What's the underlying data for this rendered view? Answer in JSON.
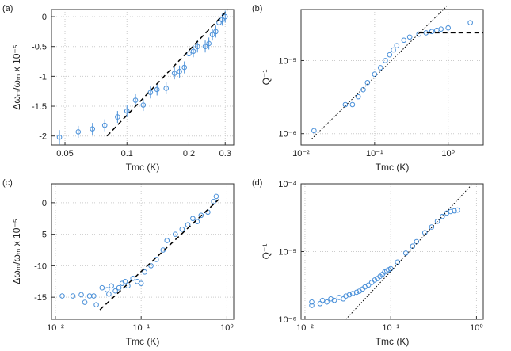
{
  "chart_data": [
    {
      "type": "scatter",
      "label": "(a)",
      "xlabel": "Tmc (K)",
      "ylabel": "Δωₘ/ωₘ x 10⁻⁵",
      "xscale": "log",
      "grid": true,
      "xlim": [
        0.043,
        0.33
      ],
      "xticks": [
        0.05,
        0.1,
        0.2,
        0.3
      ],
      "ylim": [
        -2.15,
        0.12
      ],
      "yticks": [
        -2,
        -1.5,
        -1,
        -0.5,
        0
      ],
      "series": [
        {
          "kind": "points",
          "color": "#4a90d9",
          "x": [
            0.047,
            0.058,
            0.068,
            0.078,
            0.09,
            0.1,
            0.11,
            0.12,
            0.13,
            0.14,
            0.155,
            0.17,
            0.18,
            0.19,
            0.2,
            0.21,
            0.22,
            0.24,
            0.25,
            0.26,
            0.27,
            0.28,
            0.29,
            0.3
          ],
          "values": [
            -2.02,
            -1.93,
            -1.88,
            -1.82,
            -1.68,
            -1.58,
            -1.4,
            -1.48,
            -1.27,
            -1.22,
            -1.2,
            -0.95,
            -0.92,
            -0.85,
            -0.62,
            -0.58,
            -0.5,
            -0.5,
            -0.45,
            -0.3,
            -0.25,
            -0.1,
            -0.05,
            0
          ],
          "errors": [
            0.12,
            0.1,
            0.1,
            0.1,
            0.1,
            0.1,
            0.1,
            0.1,
            0.1,
            0.1,
            0.1,
            0.1,
            0.1,
            0.1,
            0.1,
            0.1,
            0.1,
            0.1,
            0.1,
            0.1,
            0.1,
            0.1,
            0.1,
            0.1
          ]
        },
        {
          "kind": "line",
          "dash": "dashed",
          "color": "#000000",
          "x": [
            0.08,
            0.31
          ],
          "values": [
            -2.0,
            0.12
          ]
        }
      ]
    },
    {
      "type": "scatter",
      "label": "(b)",
      "xlabel": "Tmc (K)",
      "ylabel": "Q⁻¹",
      "xscale": "log",
      "yscale": "log",
      "grid": true,
      "xlim": [
        0.01,
        3
      ],
      "xticks": [
        {
          "value": 0.01,
          "label": "10⁻²"
        },
        {
          "value": 0.1,
          "label": "10⁻¹"
        },
        {
          "value": 1,
          "label": "10⁰"
        }
      ],
      "ylim": [
        7e-07,
        5e-05
      ],
      "yticks": [
        {
          "value": 1e-06,
          "label": "10⁻⁶"
        },
        {
          "value": 1e-05,
          "label": "10⁻⁵"
        }
      ],
      "series": [
        {
          "kind": "points",
          "color": "#4a90d9",
          "x": [
            0.015,
            0.04,
            0.05,
            0.06,
            0.07,
            0.08,
            0.1,
            0.12,
            0.14,
            0.16,
            0.18,
            0.2,
            0.25,
            0.3,
            0.4,
            0.5,
            0.6,
            0.7,
            0.8,
            1.0,
            2.0
          ],
          "values": [
            1.1e-06,
            2.5e-06,
            2.5e-06,
            3.2e-06,
            4e-06,
            5e-06,
            6.5e-06,
            8e-06,
            1e-05,
            1.2e-05,
            1.4e-05,
            1.6e-05,
            1.9e-05,
            2.1e-05,
            2.3e-05,
            2.4e-05,
            2.5e-05,
            2.6e-05,
            2.7e-05,
            2.8e-05,
            3.3e-05
          ]
        },
        {
          "kind": "line",
          "dash": "dotted",
          "color": "#000000",
          "x": [
            0.014,
            0.95
          ],
          "values": [
            8.5e-07,
            5.5e-05
          ]
        },
        {
          "kind": "line",
          "dash": "dashed",
          "color": "#000000",
          "x": [
            0.4,
            3
          ],
          "values": [
            2.4e-05,
            2.4e-05
          ]
        }
      ]
    },
    {
      "type": "scatter",
      "label": "(c)",
      "xlabel": "Tmc (K)",
      "ylabel": "Δωₘ/ωₘ x 10⁻⁵",
      "xscale": "log",
      "grid": true,
      "xlim": [
        0.009,
        1.2
      ],
      "xticks": [
        {
          "value": 0.01,
          "label": "10⁻²"
        },
        {
          "value": 0.1,
          "label": "10⁻¹"
        },
        {
          "value": 1,
          "label": "10⁰"
        }
      ],
      "ylim": [
        -18.5,
        3
      ],
      "yticks": [
        -15,
        -10,
        -5,
        0
      ],
      "series": [
        {
          "kind": "points",
          "color": "#4a90d9",
          "x": [
            0.012,
            0.016,
            0.02,
            0.022,
            0.025,
            0.028,
            0.03,
            0.035,
            0.04,
            0.042,
            0.045,
            0.05,
            0.055,
            0.06,
            0.065,
            0.07,
            0.08,
            0.09,
            0.1,
            0.11,
            0.13,
            0.15,
            0.18,
            0.2,
            0.25,
            0.3,
            0.35,
            0.4,
            0.45,
            0.5,
            0.6,
            0.7,
            0.75
          ],
          "values": [
            -14.8,
            -14.8,
            -14.6,
            -15.8,
            -14.8,
            -14.8,
            -16.2,
            -13.5,
            -13.8,
            -14.5,
            -13.2,
            -14,
            -13.5,
            -12.8,
            -12.5,
            -13.2,
            -12,
            -12.5,
            -12.8,
            -11,
            -10,
            -9,
            -7.5,
            -6,
            -5,
            -4.2,
            -3.5,
            -2.5,
            -3,
            -2,
            -1.5,
            0.2,
            1
          ]
        },
        {
          "kind": "line",
          "dash": "dashed",
          "color": "#000000",
          "x": [
            0.033,
            0.8
          ],
          "values": [
            -17,
            0.5
          ]
        }
      ]
    },
    {
      "type": "scatter",
      "label": "(d)",
      "xlabel": "Tmc (K)",
      "ylabel": "Q⁻¹",
      "xscale": "log",
      "yscale": "log",
      "grid": true,
      "xlim": [
        0.009,
        1.2
      ],
      "xticks": [
        {
          "value": 0.01,
          "label": "10⁻²"
        },
        {
          "value": 0.1,
          "label": "10⁻¹"
        },
        {
          "value": 1,
          "label": "10⁰"
        }
      ],
      "ylim": [
        1e-06,
        0.0001
      ],
      "yticks": [
        {
          "value": 1e-06,
          "label": "10⁻⁶"
        },
        {
          "value": 1e-05,
          "label": "10⁻⁵"
        },
        {
          "value": 0.0001,
          "label": "10⁻⁴"
        }
      ],
      "series": [
        {
          "kind": "points",
          "color": "#4a90d9",
          "x": [
            0.012,
            0.012,
            0.015,
            0.016,
            0.018,
            0.02,
            0.022,
            0.025,
            0.028,
            0.03,
            0.033,
            0.036,
            0.04,
            0.043,
            0.047,
            0.05,
            0.055,
            0.06,
            0.065,
            0.07,
            0.075,
            0.08,
            0.085,
            0.09,
            0.095,
            0.1,
            0.12,
            0.15,
            0.18,
            0.2,
            0.25,
            0.3,
            0.35,
            0.4,
            0.45,
            0.5,
            0.55,
            0.6
          ],
          "values": [
            1.6e-06,
            1.8e-06,
            1.7e-06,
            1.9e-06,
            1.8e-06,
            2e-06,
            1.9e-06,
            2.1e-06,
            2e-06,
            2.2e-06,
            2.3e-06,
            2.4e-06,
            2.5e-06,
            2.6e-06,
            2.8e-06,
            3e-06,
            3.2e-06,
            3.5e-06,
            3.8e-06,
            4e-06,
            4.3e-06,
            4.6e-06,
            5e-06,
            5.2e-06,
            5.4e-06,
            5.6e-06,
            7e-06,
            9.5e-06,
            1.2e-05,
            1.4e-05,
            1.9e-05,
            2.3e-05,
            2.8e-05,
            3.3e-05,
            3.7e-05,
            3.9e-05,
            4e-05,
            4.1e-05
          ]
        },
        {
          "kind": "line",
          "dash": "dotted",
          "color": "#000000",
          "x": [
            0.03,
            0.9
          ],
          "values": [
            1e-06,
            0.0001
          ]
        }
      ]
    }
  ]
}
